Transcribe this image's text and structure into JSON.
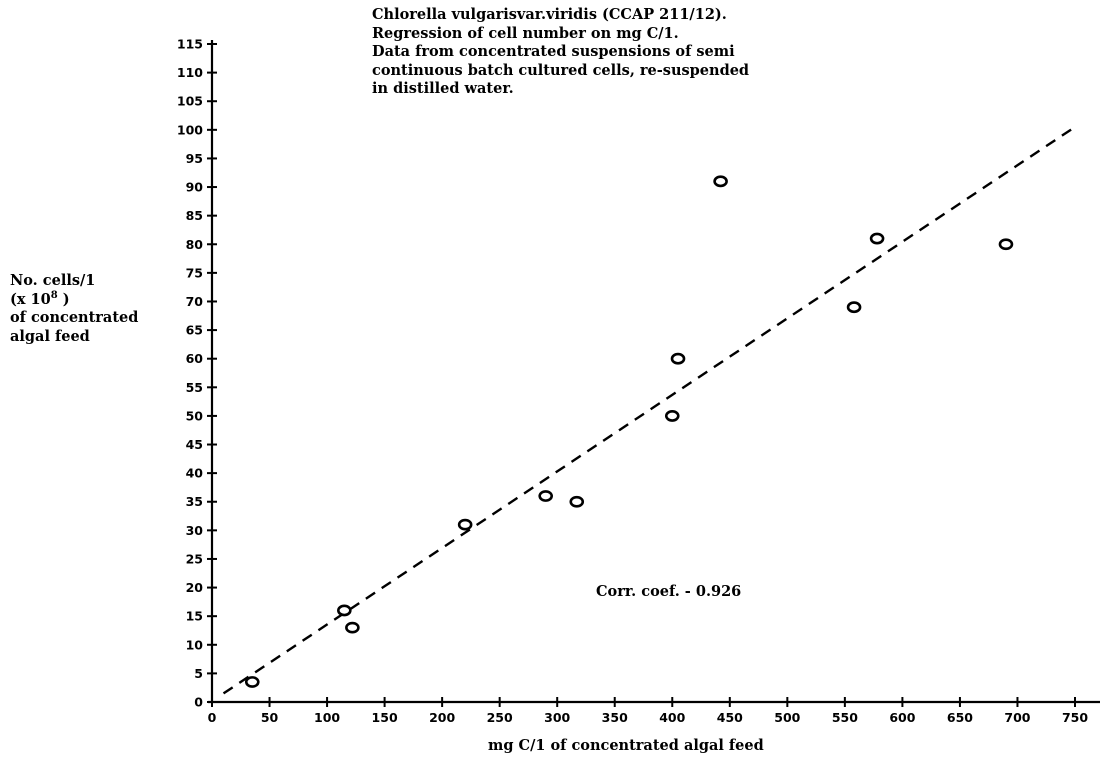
{
  "chart_data": {
    "type": "scatter",
    "annotation_lines": [
      "Chlorella vulgarisvar.viridis (CCAP 211/12).",
      "Regression of cell number on mg C/1.",
      "Data from concentrated suspensions of semi",
      "continuous batch cultured cells, re-suspended",
      "in distilled water."
    ],
    "ylabel": {
      "line1": "No. cells/1",
      "line2_prefix": "(x 10",
      "line2_sup": "8",
      "line2_suffix": " )",
      "line3": "of concentrated",
      "line4": "algal feed"
    },
    "xlabel": "mg C/1 of concentrated algal feed",
    "corr_text": "Corr. coef. - 0.926",
    "xlim": [
      0,
      750
    ],
    "ylim": [
      0,
      115
    ],
    "xticks": [
      0,
      50,
      100,
      150,
      200,
      250,
      300,
      350,
      400,
      450,
      500,
      550,
      600,
      650,
      700,
      750
    ],
    "yticks": [
      0,
      5,
      10,
      15,
      20,
      25,
      30,
      35,
      40,
      45,
      50,
      55,
      60,
      65,
      70,
      75,
      80,
      85,
      90,
      95,
      100,
      105,
      110,
      115
    ],
    "grid": false,
    "legend": "none",
    "series": [
      {
        "x": [
          35,
          115,
          122,
          220,
          290,
          317,
          400,
          405,
          442,
          558,
          578,
          690
        ],
        "y": [
          3.5,
          16,
          13,
          31,
          36,
          35,
          50,
          60,
          91,
          69,
          81,
          80
        ]
      }
    ],
    "regression_line": {
      "x": [
        10,
        750
      ],
      "y": [
        1.5,
        100.5
      ],
      "style": "dashed"
    },
    "colors": {
      "marks": "#000000"
    }
  }
}
